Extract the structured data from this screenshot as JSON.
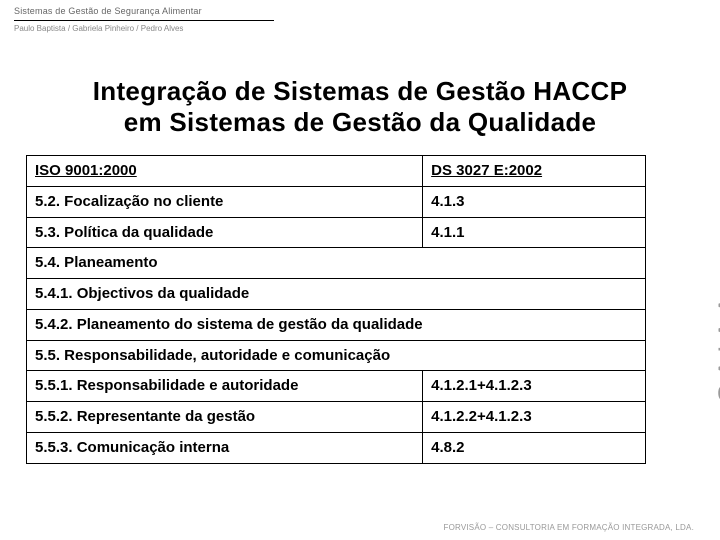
{
  "header": {
    "title": "Sistemas de Gestão de Segurança Alimentar",
    "sub": "Paulo Baptista / Gabriela Pinheiro / Pedro Alves"
  },
  "title": {
    "line1": "Integração de Sistemas de Gestão HACCP",
    "line2": "em Sistemas de Gestão da Qualidade"
  },
  "table": {
    "columns": [
      "ISO 9001:2000",
      "DS 3027 E:2002"
    ],
    "rows": [
      {
        "c1": "5.2. Focalização no cliente",
        "c2": "4.1.3"
      },
      {
        "c1": "5.3. Política da qualidade",
        "c2": "4.1.1"
      },
      {
        "c1": "5.4. Planeamento",
        "span": true
      },
      {
        "c1": "5.4.1. Objectivos da qualidade",
        "span": true
      },
      {
        "c1": "5.4.2. Planeamento do sistema de gestão da qualidade",
        "span": true
      },
      {
        "c1": "5.5. Responsabilidade, autoridade e comunicação",
        "span": true
      },
      {
        "c1": "5.5.1. Responsabilidade e autoridade",
        "c2": "4.1.2.1+4.1.2.3"
      },
      {
        "c1": "5.5.2. Representante da gestão",
        "c2": "4.1.2.2+4.1.2.3"
      },
      {
        "c1": "5.5.3. Comunicação interna",
        "c2": "4.8.2"
      }
    ]
  },
  "sideLogo": "SAIAA",
  "footer": "FORVISÃO – CONSULTORIA EM FORMAÇÃO INTEGRADA, LDA.",
  "colors": {
    "text": "#000000",
    "muted": "#888888",
    "grayLogo": "#9a9a9a",
    "background": "#ffffff",
    "border": "#000000"
  }
}
